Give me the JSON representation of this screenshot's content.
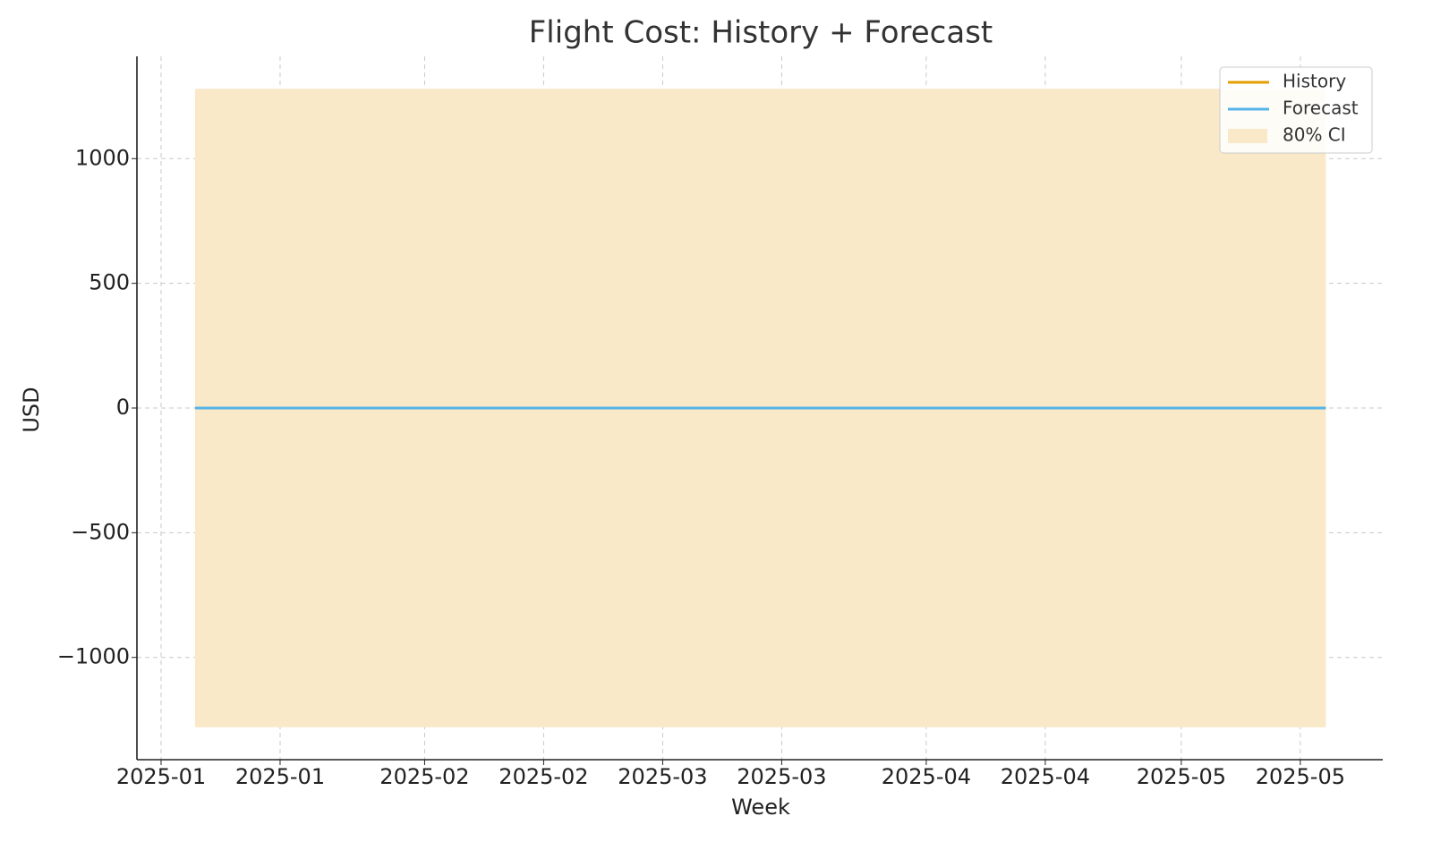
{
  "chart_data": {
    "type": "line",
    "title": "Flight Cost: History + Forecast",
    "x_label": "Week",
    "y_label": "USD",
    "x": [
      4,
      11,
      18,
      25,
      32,
      39,
      46,
      53,
      60,
      67,
      74,
      81,
      88,
      95,
      102,
      109,
      116,
      123,
      130,
      137
    ],
    "series": [
      {
        "name": "History",
        "color": "#e69f00",
        "values": [
          0,
          0,
          0,
          0,
          0,
          0,
          0,
          0,
          0,
          0,
          0,
          0,
          0,
          0,
          0,
          0,
          0,
          0,
          0,
          0
        ]
      },
      {
        "name": "Forecast",
        "color": "#56b4e9",
        "values": [
          0,
          0,
          0,
          0,
          0,
          0,
          0,
          0,
          0,
          0,
          0,
          0,
          0,
          0,
          0,
          0,
          0,
          0,
          0,
          0
        ]
      }
    ],
    "band": {
      "name": "80% CI",
      "color": "#f9e9c8",
      "lower": [
        -1280,
        -1280,
        -1280,
        -1280,
        -1280,
        -1280,
        -1280,
        -1280,
        -1280,
        -1280,
        -1280,
        -1280,
        -1280,
        -1280,
        -1280,
        -1280,
        -1280,
        -1280,
        -1280,
        -1280
      ],
      "upper": [
        1280,
        1280,
        1280,
        1280,
        1280,
        1280,
        1280,
        1280,
        1280,
        1280,
        1280,
        1280,
        1280,
        1280,
        1280,
        1280,
        1280,
        1280,
        1280,
        1280
      ]
    },
    "xlim": [
      -2.84,
      143.7
    ],
    "xticks": [
      {
        "value": 0,
        "label": "2025-01"
      },
      {
        "value": 14,
        "label": "2025-01"
      },
      {
        "value": 31,
        "label": "2025-02"
      },
      {
        "value": 45,
        "label": "2025-02"
      },
      {
        "value": 59,
        "label": "2025-03"
      },
      {
        "value": 73,
        "label": "2025-03"
      },
      {
        "value": 90,
        "label": "2025-04"
      },
      {
        "value": 104,
        "label": "2025-04"
      },
      {
        "value": 120,
        "label": "2025-05"
      },
      {
        "value": 134,
        "label": "2025-05"
      }
    ],
    "ylim": [
      -1410,
      1410
    ],
    "yticks": [
      {
        "value": -1000,
        "label": "−1000"
      },
      {
        "value": -500,
        "label": "−500"
      },
      0,
      500,
      1000
    ],
    "grid": true,
    "legend": "upper right"
  }
}
